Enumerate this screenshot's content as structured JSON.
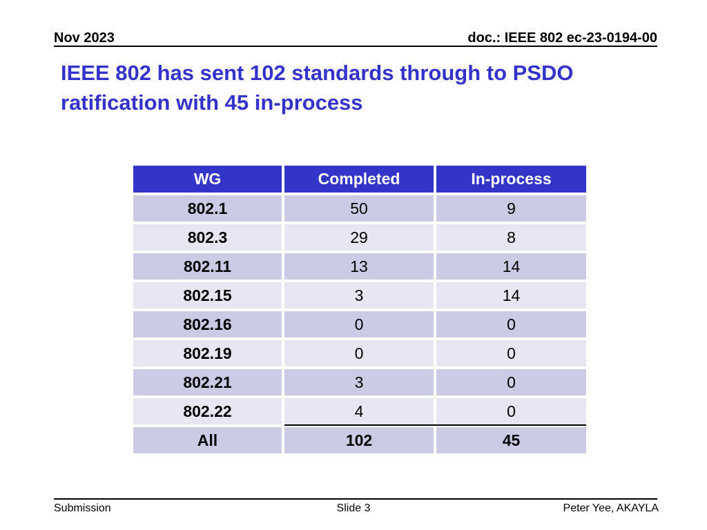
{
  "slide": {
    "top": {
      "date": "Nov 2023",
      "doc_number": "doc.: IEEE 802 ec-23-0194-00"
    },
    "title": "IEEE 802 has sent 102 standards through to PSDO ratification with 45 in-process",
    "title_lines": [
      "IEEE 802 has sent 102 standards through to PSDO",
      "ratification with 45 in-process"
    ],
    "footer": {
      "submission": "Submission",
      "slide_number": "Slide 3",
      "author": "Peter Yee, AKAYLA"
    }
  },
  "chart_data": {
    "type": "table",
    "title": "IEEE 802 standards sent to PSDO ratification by working group",
    "columns": [
      "WG",
      "Completed",
      "In-process"
    ],
    "rows": [
      [
        "802.1",
        50,
        9
      ],
      [
        "802.3",
        29,
        8
      ],
      [
        "802.11",
        13,
        14
      ],
      [
        "802.15",
        3,
        14
      ],
      [
        "802.16",
        0,
        0
      ],
      [
        "802.19",
        0,
        0
      ],
      [
        "802.21",
        3,
        0
      ],
      [
        "802.22",
        4,
        0
      ],
      [
        "All",
        102,
        45
      ]
    ],
    "totals_row": [
      "All",
      102,
      45
    ]
  },
  "colors": {
    "title_text": "#3333CC",
    "table_header_bg": "#3235C8",
    "table_header_text": "#FFFFFF",
    "row_dark": "#CBCBE5",
    "row_light": "#E7E7F3",
    "body_text": "#000000",
    "background": "#FFFFFF"
  }
}
